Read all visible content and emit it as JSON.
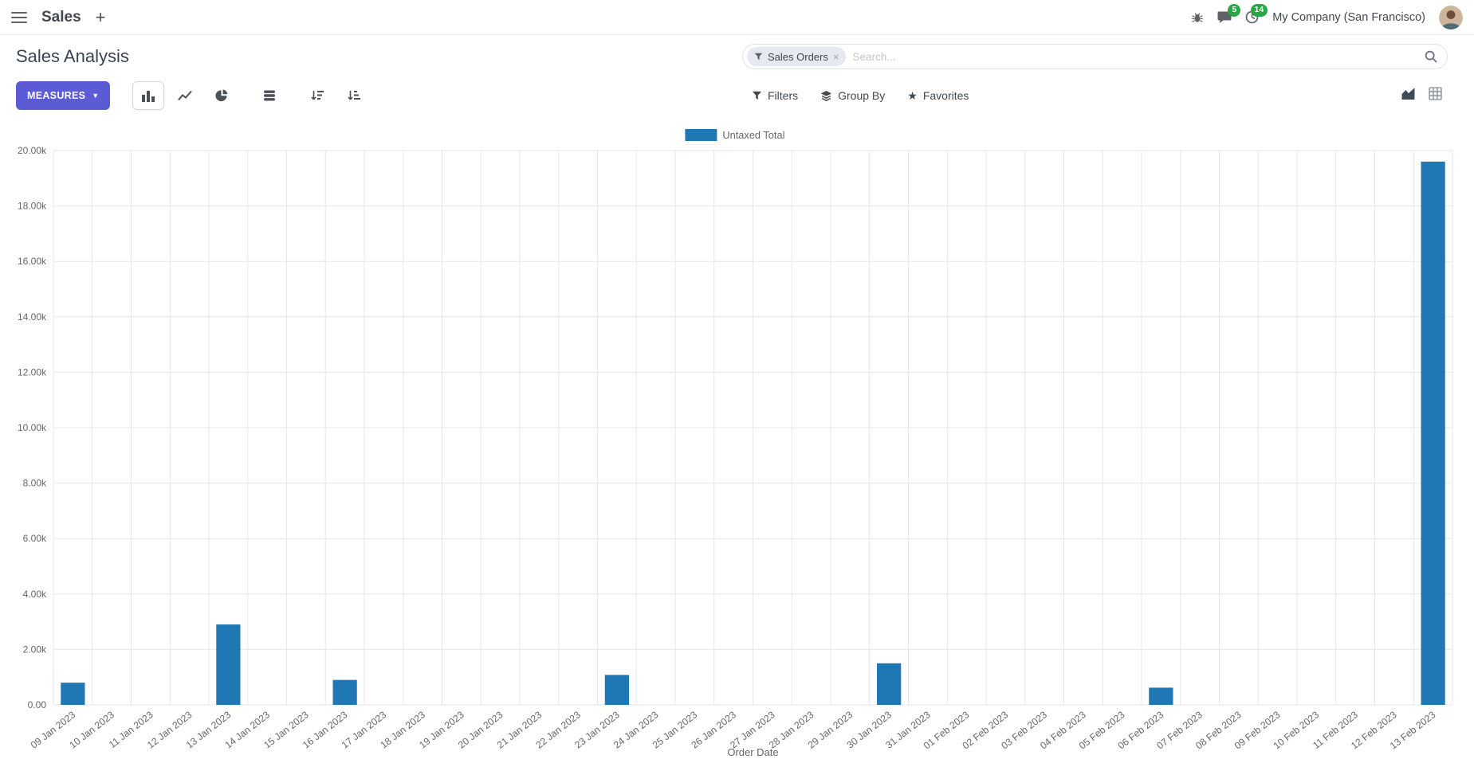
{
  "navbar": {
    "app_name": "Sales",
    "company": "My Company (San Francisco)",
    "messages_count": "5",
    "activities_count": "14"
  },
  "control_panel": {
    "title": "Sales Analysis",
    "measures_label": "MEASURES",
    "search": {
      "facet_label": "Sales Orders",
      "placeholder": "Search..."
    },
    "filters_label": "Filters",
    "group_by_label": "Group By",
    "favorites_label": "Favorites"
  },
  "icons": {
    "plus": "+",
    "close": "×",
    "star": "★",
    "caret_down": "▼"
  },
  "colors": {
    "accent": "#5b5bd6",
    "badge": "#28a745",
    "bar": "#1f77b4",
    "grid": "#e7e7e7",
    "axis_text": "#666666"
  },
  "chart_data": {
    "type": "bar",
    "title": "",
    "xlabel": "Order Date",
    "ylabel": "",
    "ylim": [
      0,
      20000
    ],
    "y_tick_step": 2000,
    "grid": true,
    "legend": [
      "Untaxed Total"
    ],
    "legend_position": "top",
    "series_color": "#1f77b4",
    "categories": [
      "09 Jan 2023",
      "10 Jan 2023",
      "11 Jan 2023",
      "12 Jan 2023",
      "13 Jan 2023",
      "14 Jan 2023",
      "15 Jan 2023",
      "16 Jan 2023",
      "17 Jan 2023",
      "18 Jan 2023",
      "19 Jan 2023",
      "20 Jan 2023",
      "21 Jan 2023",
      "22 Jan 2023",
      "23 Jan 2023",
      "24 Jan 2023",
      "25 Jan 2023",
      "26 Jan 2023",
      "27 Jan 2023",
      "28 Jan 2023",
      "29 Jan 2023",
      "30 Jan 2023",
      "31 Jan 2023",
      "01 Feb 2023",
      "02 Feb 2023",
      "03 Feb 2023",
      "04 Feb 2023",
      "05 Feb 2023",
      "06 Feb 2023",
      "07 Feb 2023",
      "08 Feb 2023",
      "09 Feb 2023",
      "10 Feb 2023",
      "11 Feb 2023",
      "12 Feb 2023",
      "13 Feb 2023"
    ],
    "values": [
      800,
      0,
      0,
      0,
      2900,
      0,
      0,
      900,
      0,
      0,
      0,
      0,
      0,
      0,
      1080,
      0,
      0,
      0,
      0,
      0,
      0,
      1500,
      0,
      0,
      0,
      0,
      0,
      0,
      620,
      0,
      0,
      0,
      0,
      0,
      0,
      19600
    ]
  }
}
